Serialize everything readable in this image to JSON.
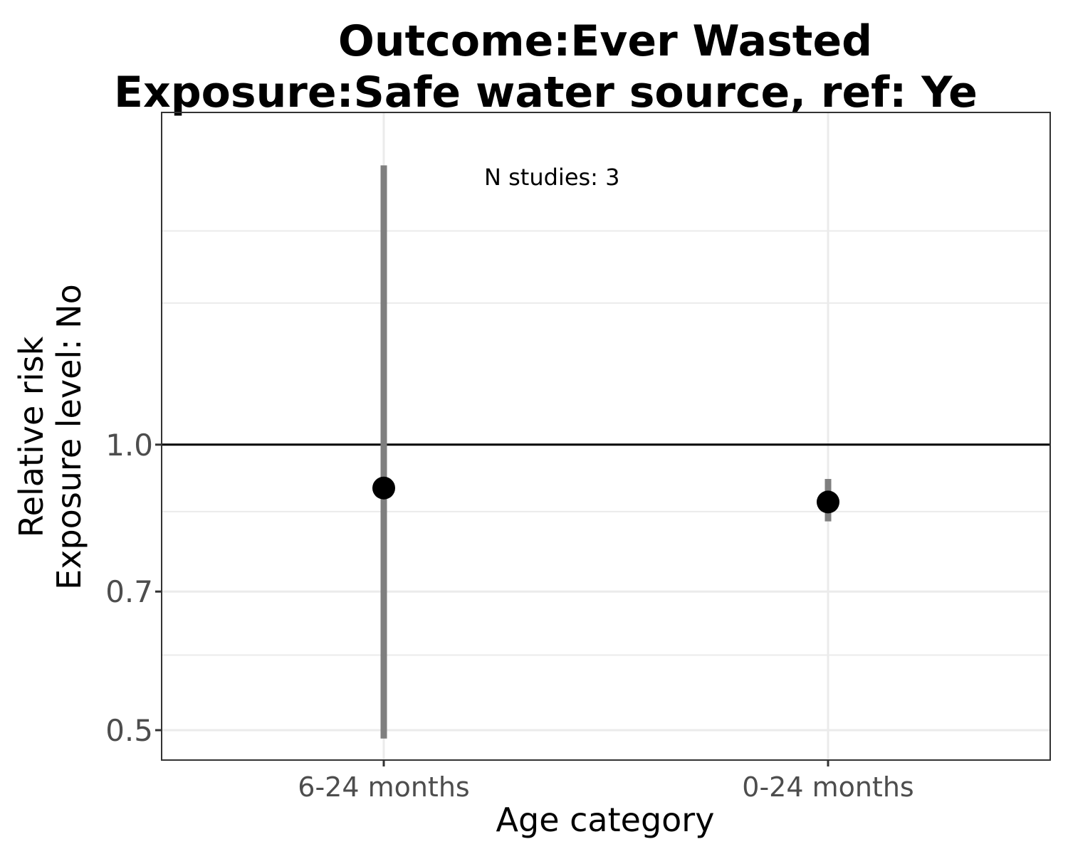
{
  "chart_data": {
    "type": "scatter",
    "title_lines": [
      "Outcome:Ever Wasted",
      "Exposure:Safe water source, ref: Ye"
    ],
    "xlabel": "Age category",
    "ylabel_lines": [
      "Relative risk",
      "Exposure level: No"
    ],
    "categories": [
      "6-24 months",
      "0-24 months"
    ],
    "series": [
      {
        "estimates": [
          0.9,
          0.87
        ],
        "ci_lower": [
          0.49,
          0.83
        ],
        "ci_upper": [
          1.97,
          0.92
        ]
      }
    ],
    "reference_line": 1.0,
    "y_scale": "log",
    "ylim": [
      0.465,
      2.24
    ],
    "y_ticks": [
      0.5,
      0.7,
      1.0
    ],
    "y_tick_labels": [
      "0.5",
      "0.7",
      "1.0"
    ],
    "y_minor_grid": [
      0.6,
      0.85,
      1.41,
      1.68
    ],
    "grid": true,
    "annotation": "N studies: 3"
  },
  "colors": {
    "point": "#000000",
    "ci_bar": "#7f7f7f",
    "grid": "#ebebeb",
    "reference_line": "#000000",
    "tick_text": "#4d4d4d"
  }
}
